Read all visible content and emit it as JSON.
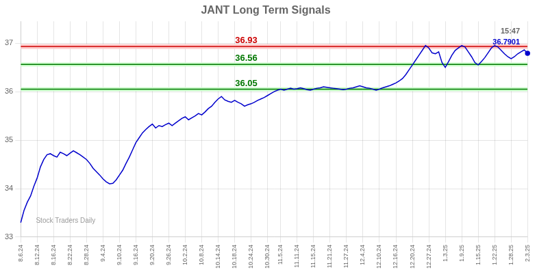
{
  "chart_data": {
    "type": "line",
    "title": "JANT Long Term Signals",
    "categories": [
      "8.6.24",
      null,
      null,
      null,
      null,
      "8.12.24",
      null,
      null,
      null,
      null,
      "8.16.24",
      null,
      null,
      null,
      null,
      "8.22.24",
      null,
      null,
      null,
      null,
      "8.28.24",
      null,
      null,
      null,
      null,
      "9.4.24",
      null,
      null,
      null,
      null,
      "9.10.24",
      null,
      null,
      null,
      null,
      "9.16.24",
      null,
      null,
      null,
      null,
      "9.20.24",
      null,
      null,
      null,
      null,
      "9.26.24",
      null,
      null,
      null,
      null,
      "10.2.24",
      null,
      null,
      null,
      null,
      "10.8.24",
      null,
      null,
      null,
      null,
      "10.14.24",
      null,
      null,
      null,
      null,
      "10.18.24",
      null,
      null,
      null,
      null,
      "10.24.24",
      null,
      null,
      null,
      null,
      "10.30.24",
      null,
      null,
      null,
      "11.5.24",
      null,
      null,
      null,
      null,
      "11.11.24",
      null,
      null,
      null,
      null,
      "11.15.24",
      null,
      null,
      null,
      null,
      "11.21.24",
      null,
      null,
      null,
      null,
      "11.27.24",
      null,
      null,
      null,
      null,
      "12.4.24",
      null,
      null,
      null,
      null,
      "12.10.24",
      null,
      null,
      null,
      null,
      "12.16.24",
      null,
      null,
      null,
      null,
      "12.20.24",
      null,
      null,
      null,
      null,
      "12.27.24",
      null,
      null,
      null,
      null,
      "1.3.25",
      null,
      null,
      null,
      null,
      "1.9.25",
      null,
      null,
      null,
      null,
      "1.15.25",
      null,
      null,
      null,
      null,
      "1.22.25",
      null,
      null,
      null,
      null,
      "1.28.25",
      null,
      null,
      null,
      null,
      "2.3.25"
    ],
    "values": [
      33.3,
      33.55,
      33.72,
      33.85,
      34.05,
      34.22,
      34.45,
      34.6,
      34.7,
      34.72,
      34.68,
      34.65,
      34.75,
      34.72,
      34.68,
      34.73,
      34.78,
      34.74,
      34.7,
      34.65,
      34.6,
      34.52,
      34.42,
      34.35,
      34.28,
      34.2,
      34.14,
      34.1,
      34.11,
      34.18,
      34.28,
      34.38,
      34.52,
      34.65,
      34.8,
      34.95,
      35.05,
      35.15,
      35.22,
      35.28,
      35.33,
      35.25,
      35.3,
      35.28,
      35.32,
      35.35,
      35.3,
      35.35,
      35.4,
      35.45,
      35.48,
      35.42,
      35.46,
      35.5,
      35.55,
      35.52,
      35.58,
      35.65,
      35.7,
      35.78,
      35.85,
      35.9,
      35.83,
      35.8,
      35.78,
      35.82,
      35.78,
      35.75,
      35.7,
      35.73,
      35.75,
      35.78,
      35.82,
      35.85,
      35.88,
      35.92,
      35.96,
      36.0,
      36.03,
      36.05,
      36.03,
      36.05,
      36.07,
      36.05,
      36.06,
      36.08,
      36.06,
      36.04,
      36.03,
      36.05,
      36.07,
      36.08,
      36.1,
      36.09,
      36.08,
      36.07,
      36.06,
      36.05,
      36.04,
      36.05,
      36.07,
      36.08,
      36.1,
      36.12,
      36.1,
      36.08,
      36.07,
      36.05,
      36.03,
      36.05,
      36.08,
      36.1,
      36.12,
      36.15,
      36.18,
      36.22,
      36.27,
      36.35,
      36.45,
      36.55,
      36.65,
      36.75,
      36.85,
      36.95,
      36.9,
      36.8,
      36.78,
      36.82,
      36.6,
      36.5,
      36.62,
      36.75,
      36.85,
      36.9,
      36.95,
      36.92,
      36.82,
      36.72,
      36.6,
      36.55,
      36.62,
      36.7,
      36.8,
      36.9,
      36.95,
      36.92,
      36.85,
      36.78,
      36.72,
      36.68,
      36.72,
      36.78,
      36.82,
      36.86,
      36.7901
    ],
    "color": "#0000cc",
    "marker": "end",
    "ylim": [
      33.0,
      37.45
    ],
    "yticks": [
      33,
      34,
      35,
      36,
      37
    ],
    "grid": true,
    "hlines": [
      {
        "value": 36.93,
        "label": "36.93",
        "color": "#cc0000",
        "band": [
          36.88,
          36.98
        ],
        "band_color": "#ffcccc"
      },
      {
        "value": 36.56,
        "label": "36.56",
        "color": "#007700",
        "band": [
          36.52,
          36.6
        ],
        "band_color": "#ccffcc"
      },
      {
        "value": 36.05,
        "label": "36.05",
        "color": "#007700",
        "band": [
          36.01,
          36.09
        ],
        "band_color": "#ccffcc"
      }
    ],
    "annotations": [
      {
        "text": "15:47"
      },
      {
        "text": "36.7901",
        "color": "#0000cc"
      },
      {
        "text": "Stock Traders Daily",
        "color": "#999999"
      }
    ]
  }
}
